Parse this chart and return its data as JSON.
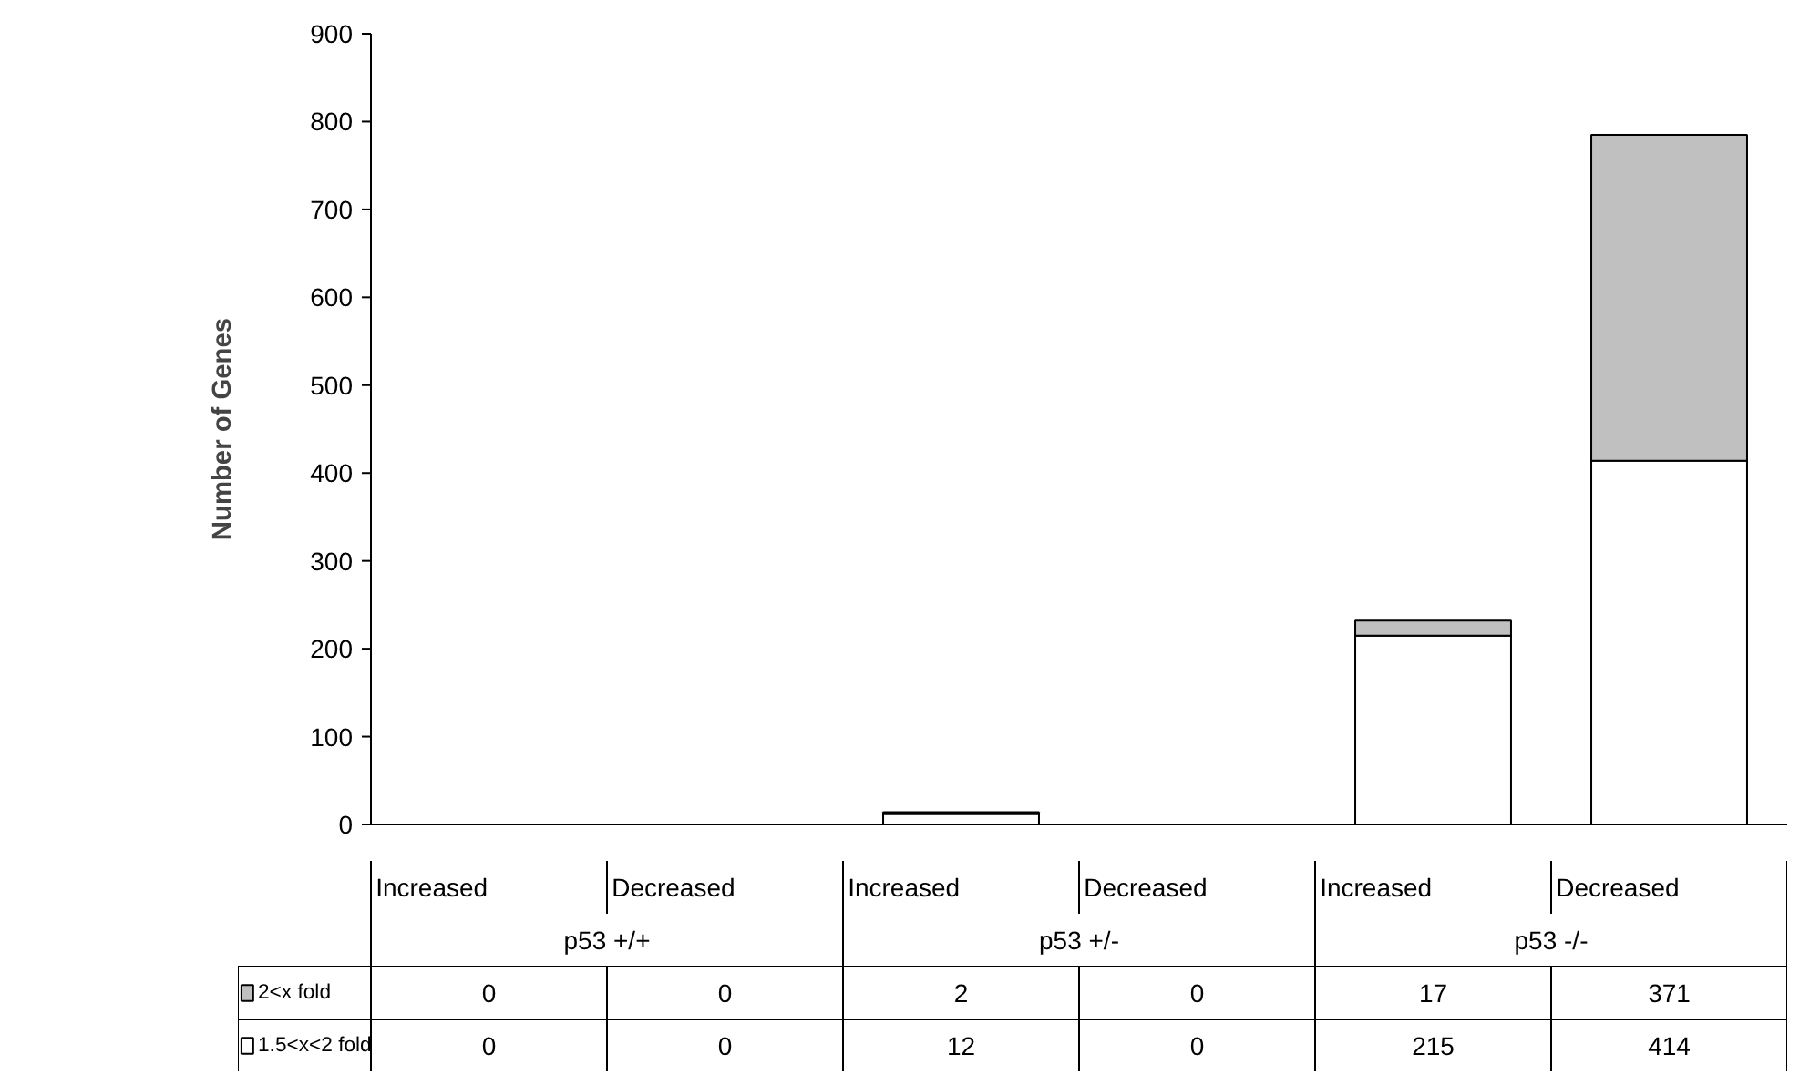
{
  "chart_data": {
    "type": "bar",
    "stacked": true,
    "ylabel": "Number of Genes",
    "categories": [
      "Increased",
      "Decreased",
      "Increased",
      "Decreased",
      "Increased",
      "Decreased"
    ],
    "annotations": [
      "p53 +/+",
      "p53 +/-",
      "p53 -/-"
    ],
    "series": [
      {
        "name": "1.5<x<2 fold",
        "color": "#ffffff",
        "values": [
          0,
          0,
          12,
          0,
          215,
          414
        ]
      },
      {
        "name": "2<x fold",
        "color": "#c0c0c0",
        "values": [
          0,
          0,
          2,
          0,
          17,
          371
        ]
      }
    ],
    "ylim": [
      0,
      900
    ],
    "yticks": [
      0,
      100,
      200,
      300,
      400,
      500,
      600,
      700,
      800,
      900
    ],
    "data_labels": true,
    "legend": "bottom left",
    "grid": false
  }
}
